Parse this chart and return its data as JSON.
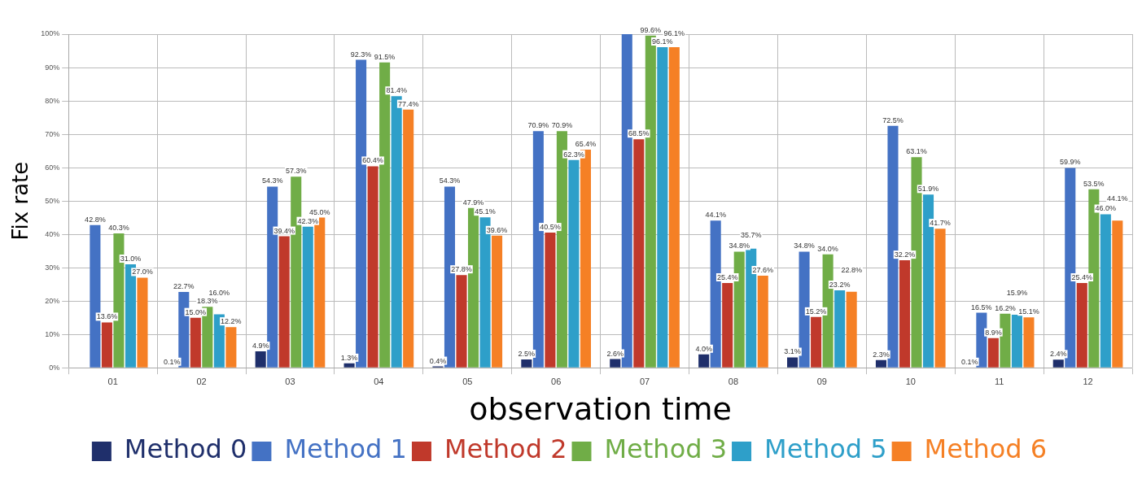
{
  "chart_data": {
    "type": "bar",
    "xlabel": "observation time",
    "ylabel": "Fix rate",
    "categories": [
      "01",
      "02",
      "03",
      "04",
      "05",
      "06",
      "07",
      "08",
      "09",
      "10",
      "11",
      "12"
    ],
    "ylim": [
      0,
      100
    ],
    "yticks": [
      {
        "value": 0,
        "label": "0%"
      },
      {
        "value": 10,
        "label": "10%"
      },
      {
        "value": 20,
        "label": "20%"
      },
      {
        "value": 30,
        "label": "30%"
      },
      {
        "value": 40,
        "label": "40%"
      },
      {
        "value": 50,
        "label": "50%"
      },
      {
        "value": 60,
        "label": "60%"
      },
      {
        "value": 70,
        "label": "70%"
      },
      {
        "value": 80,
        "label": "80%"
      },
      {
        "value": 90,
        "label": "90%"
      },
      {
        "value": 100,
        "label": "100%"
      }
    ],
    "grid": true,
    "legend": "bottom",
    "series": [
      {
        "name": "Method 0",
        "color": "#1f2f6b",
        "values": [
          null,
          0.1,
          4.9,
          1.3,
          0.4,
          2.5,
          2.6,
          4.0,
          3.1,
          2.3,
          0.1,
          2.4
        ],
        "value_labels": [
          null,
          "0.1%",
          "4.9%",
          "1.3%",
          "0.4%",
          "2.5%",
          "2.6%",
          "4.0%",
          "3.1%",
          "2.3%",
          "0.1%",
          "2.4%"
        ]
      },
      {
        "name": "Method 1",
        "color": "#4472c4",
        "values": [
          42.8,
          22.7,
          54.3,
          92.3,
          54.3,
          70.9,
          100,
          44.1,
          34.8,
          72.5,
          16.5,
          59.9
        ],
        "value_labels": [
          "42.8%",
          "22.7%",
          "54.3%",
          "92.3%",
          "54.3%",
          "70.9%",
          null,
          "44.1%",
          "34.8%",
          "72.5%",
          "16.5%",
          "59.9%"
        ]
      },
      {
        "name": "Method 2",
        "color": "#c0392b",
        "values": [
          13.6,
          15.0,
          39.4,
          60.4,
          27.8,
          40.5,
          68.5,
          25.4,
          15.2,
          32.2,
          8.9,
          25.4
        ],
        "value_labels": [
          "13.6%",
          "15.0%",
          "39.4%",
          "60.4%",
          "27.8%",
          "40.5%",
          "68.5%",
          "25.4%",
          "15.2%",
          "32.2%",
          "8.9%",
          "25.4%"
        ]
      },
      {
        "name": "Method 3",
        "color": "#70ad47",
        "values": [
          40.3,
          18.3,
          57.3,
          91.5,
          47.9,
          70.9,
          99.6,
          34.8,
          34.0,
          63.1,
          16.2,
          53.5
        ],
        "value_labels": [
          "40.3%",
          "18.3%",
          "57.3%",
          "91.5%",
          "47.9%",
          "70.9%",
          "99.6%",
          "34.8%",
          "34.0%",
          "63.1%",
          "16.2%",
          "53.5%"
        ]
      },
      {
        "name": "Method 5",
        "color": "#2e9fc9",
        "values": [
          31.0,
          16.0,
          42.3,
          81.4,
          45.1,
          62.3,
          96.1,
          35.7,
          23.2,
          51.9,
          15.9,
          46.0
        ],
        "value_labels": [
          "31.0%",
          "16.0%",
          "42.3%",
          "81.4%",
          "45.1%",
          "62.3%",
          "96.1%",
          "35.7%",
          "23.2%",
          "51.9%",
          "15.9%",
          "46.0%"
        ]
      },
      {
        "name": "Method 6",
        "color": "#f58025",
        "values": [
          27.0,
          12.2,
          45.0,
          77.4,
          39.6,
          65.4,
          96.1,
          27.6,
          22.8,
          41.7,
          15.1,
          44.1
        ],
        "value_labels": [
          "27.0%",
          "12.2%",
          "45.0%",
          "77.4%",
          "39.6%",
          "65.4%",
          "96.1%",
          "27.6%",
          "22.8%",
          "41.7%",
          "15.1%",
          "44.1%"
        ]
      }
    ]
  }
}
